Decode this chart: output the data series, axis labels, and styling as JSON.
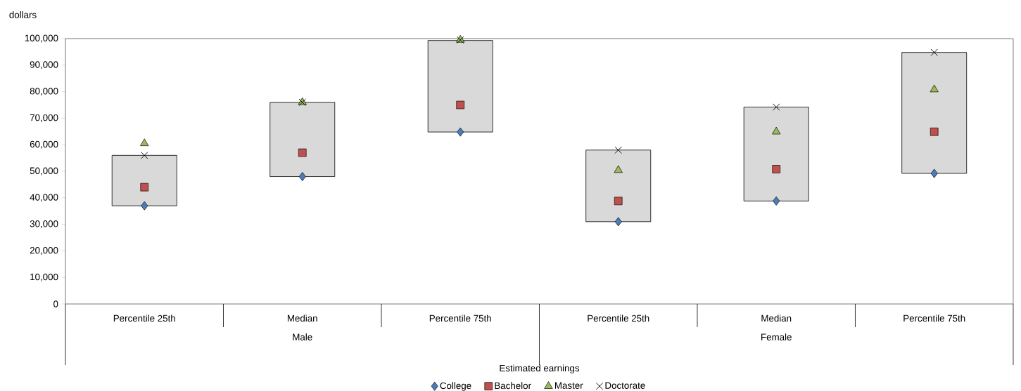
{
  "chart_data": {
    "type": "scatter",
    "xlabel": "Estimated earnings",
    "ylabel": "dollars",
    "categories": [
      "Percentile 25th",
      "Median",
      "Percentile 75th",
      "Percentile 25th",
      "Median",
      "Percentile 75th"
    ],
    "series": [
      {
        "type": "bar",
        "color": "#d9d9d9",
        "base": [
          37000,
          48000,
          64800,
          31000,
          38800,
          49200
        ],
        "values": [
          19000,
          28000,
          34500,
          27000,
          35400,
          45600
        ]
      },
      {
        "name": "College",
        "color": "#4a7ebb",
        "marker": "diamond",
        "values": [
          37000,
          48000,
          64800,
          31000,
          38800,
          49200
        ]
      },
      {
        "name": "Bachelor",
        "color": "#c0504d",
        "marker": "square",
        "values": [
          44000,
          57000,
          75000,
          38800,
          50800,
          64900
        ]
      },
      {
        "name": "Master",
        "color": "#9bbb59",
        "marker": "triangle",
        "values": [
          60500,
          76000,
          99500,
          50400,
          64900,
          80800
        ]
      },
      {
        "name": "Doctorate",
        "color": "#000000",
        "marker": "cross",
        "values": [
          56000,
          76000,
          99500,
          58000,
          74200,
          94800
        ]
      }
    ],
    "ylim": [
      0,
      100000
    ],
    "yticks": [
      0,
      {
        "value": 10000,
        "label": "10,000"
      },
      {
        "value": 20000,
        "label": "20,000"
      },
      {
        "value": 30000,
        "label": "30,000"
      },
      {
        "value": 40000,
        "label": "40,000"
      },
      {
        "value": 50000,
        "label": "50,000"
      },
      {
        "value": 60000,
        "label": "60,000"
      },
      {
        "value": 70000,
        "label": "70,000"
      },
      {
        "value": 80000,
        "label": "80,000"
      },
      {
        "value": 90000,
        "label": "90,000"
      },
      {
        "value": 100000,
        "label": "100,000"
      }
    ],
    "annotations": [
      "Male",
      "Female"
    ],
    "legend": "bottom"
  }
}
